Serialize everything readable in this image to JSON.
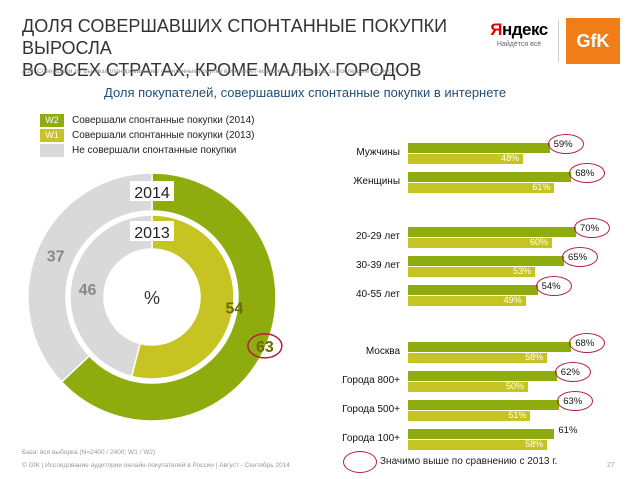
{
  "header": {
    "title_line1": "ДОЛЯ СОВЕРШАВШИХ СПОНТАННЫЕ ПОКУПКИ ВЫРОСЛА",
    "title_line2": "ВО ВСЕХ СТРАТАХ, КРОМЕ МАЛЫХ ГОРОДОВ",
    "question": "А14. Совершали ли Вы незапланированные / спонтанные покупки в интернет-магазинах хотя бы раз за последние 12 мес.?",
    "subtitle": "Доля покупателей, совершавших спонтанные покупки в интернете"
  },
  "logos": {
    "yandex_text": "Яндекс",
    "yandex_first_letter": "Я",
    "yandex_rest": "ндекс",
    "yandex_slogan": "Найдётся всё",
    "gfk_text": "GfK"
  },
  "colors": {
    "w2": "#8fac0e",
    "w1": "#c6c423",
    "none": "#d9d9d9",
    "significant": "#b21e45",
    "subtitle": "#1f4e79"
  },
  "legend": [
    {
      "tag": "W2",
      "label": "Совершали спонтанные покупки (2014)"
    },
    {
      "tag": "W1",
      "label": "Совершали спонтанные покупки (2013)"
    },
    {
      "tag": "",
      "label": "Не совершали спонтанные покупки"
    }
  ],
  "chart_data": [
    {
      "type": "pie",
      "subtype": "donut",
      "center_label": "%",
      "rings": [
        {
          "name": "2014",
          "slices": [
            {
              "label": "Совершали",
              "value": 63
            },
            {
              "label": "Не совершали",
              "value": 37
            }
          ],
          "significant_slice": 0
        },
        {
          "name": "2013",
          "slices": [
            {
              "label": "Совершали",
              "value": 54
            },
            {
              "label": "Не совершали",
              "value": 46
            }
          ]
        }
      ]
    },
    {
      "type": "bar",
      "orientation": "horizontal",
      "series_names": [
        "2014",
        "2013"
      ],
      "xlim": [
        0,
        100
      ],
      "groups": [
        {
          "rows": [
            {
              "label": "Мужчины",
              "w2": 59,
              "w1": 48,
              "w2_text": "59%",
              "w1_text": "48%",
              "significant": true
            },
            {
              "label": "Женщины",
              "w2": 68,
              "w1": 61,
              "w2_text": "68%",
              "w1_text": "61%",
              "significant": true
            }
          ]
        },
        {
          "rows": [
            {
              "label": "20-29 лет",
              "w2": 70,
              "w1": 60,
              "w2_text": "70%",
              "w1_text": "60%",
              "significant": true
            },
            {
              "label": "30-39 лет",
              "w2": 65,
              "w1": 53,
              "w2_text": "65%",
              "w1_text": "53%",
              "significant": true
            },
            {
              "label": "40-55 лет",
              "w2": 54,
              "w1": 49,
              "w2_text": "54%",
              "w1_text": "49%",
              "significant": true
            }
          ]
        },
        {
          "rows": [
            {
              "label": "Москва",
              "w2": 68,
              "w1": 58,
              "w2_text": "68%",
              "w1_text": "58%",
              "significant": true
            },
            {
              "label": "Города 800+",
              "w2": 62,
              "w1": 50,
              "w2_text": "62%",
              "w1_text": "50%",
              "significant": true
            },
            {
              "label": "Города 500+",
              "w2": 63,
              "w1": 51,
              "w2_text": "63%",
              "w1_text": "51%",
              "significant": true
            },
            {
              "label": "Города 100+",
              "w2": 61,
              "w1": 58,
              "w2_text": "61%",
              "w1_text": "58%",
              "significant": false
            }
          ]
        }
      ]
    }
  ],
  "significance_note": "Значимо выше по сравнению с 2013 г.",
  "base_note": "База: вся выборка (N=2400 / 2400; W1 / W2)",
  "footer": "© GfK | Исследование аудитории онлайн-покупателей в России | Август - Сентябрь 2014",
  "page_number": "27"
}
